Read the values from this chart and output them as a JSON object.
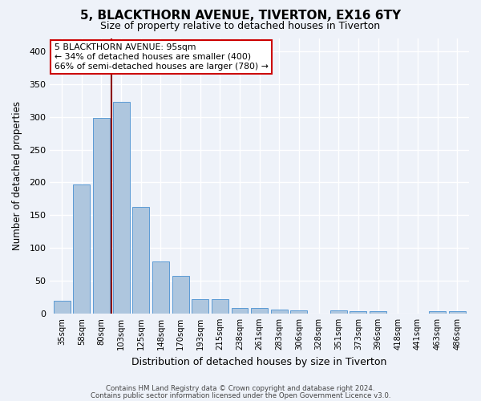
{
  "title": "5, BLACKTHORN AVENUE, TIVERTON, EX16 6TY",
  "subtitle": "Size of property relative to detached houses in Tiverton",
  "xlabel": "Distribution of detached houses by size in Tiverton",
  "ylabel": "Number of detached properties",
  "bar_labels": [
    "35sqm",
    "58sqm",
    "80sqm",
    "103sqm",
    "125sqm",
    "148sqm",
    "170sqm",
    "193sqm",
    "215sqm",
    "238sqm",
    "261sqm",
    "283sqm",
    "306sqm",
    "328sqm",
    "351sqm",
    "373sqm",
    "396sqm",
    "418sqm",
    "441sqm",
    "463sqm",
    "486sqm"
  ],
  "bar_values": [
    20,
    197,
    298,
    323,
    163,
    80,
    57,
    22,
    22,
    9,
    8,
    6,
    5,
    0,
    5,
    4,
    3,
    0,
    0,
    3,
    3
  ],
  "bar_color": "#aec6de",
  "bar_edge_color": "#5b9bd5",
  "background_color": "#eef2f9",
  "grid_color": "#ffffff",
  "annotation_title": "5 BLACKTHORN AVENUE: 95sqm",
  "annotation_line1": "← 34% of detached houses are smaller (400)",
  "annotation_line2": "66% of semi-detached houses are larger (780) →",
  "vline_color": "#8b0000",
  "annotation_box_color": "#ffffff",
  "annotation_box_edge": "#cc0000",
  "ylim": [
    0,
    420
  ],
  "yticks": [
    0,
    50,
    100,
    150,
    200,
    250,
    300,
    350,
    400
  ],
  "footer1": "Contains HM Land Registry data © Crown copyright and database right 2024.",
  "footer2": "Contains public sector information licensed under the Open Government Licence v3.0."
}
